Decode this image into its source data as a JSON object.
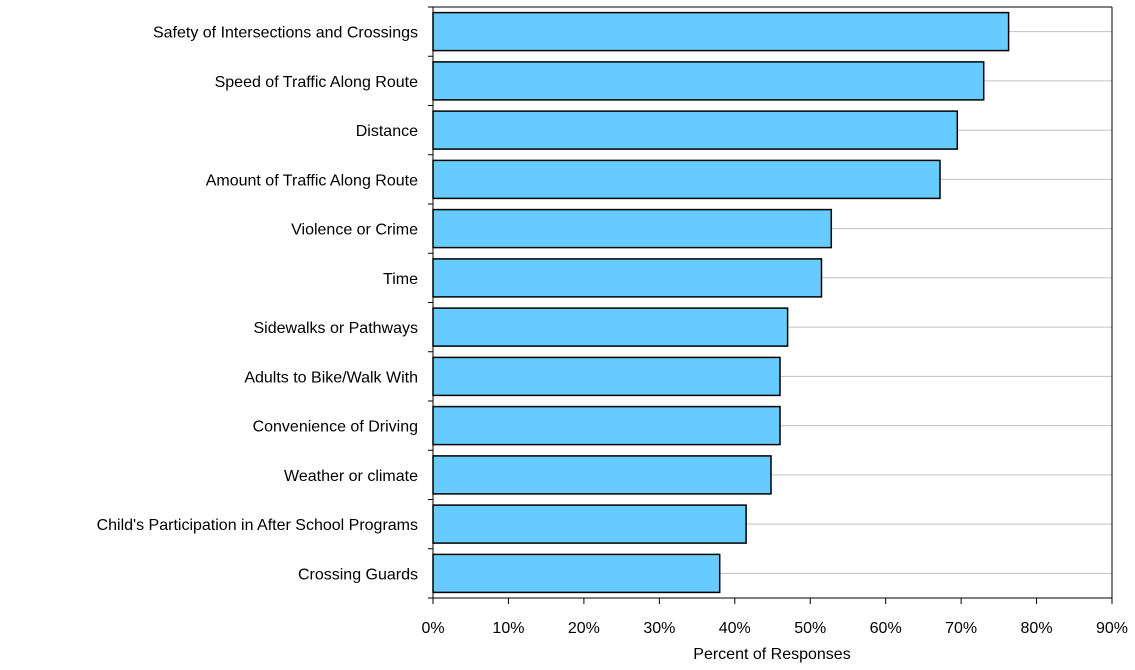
{
  "chart_data": {
    "type": "bar",
    "orientation": "horizontal",
    "categories": [
      "Safety of Intersections and Crossings",
      "Speed of Traffic Along Route",
      "Distance",
      "Amount of Traffic Along Route",
      "Violence or Crime",
      "Time",
      "Sidewalks or Pathways",
      "Adults to Bike/Walk With",
      "Convenience of Driving",
      "Weather or climate",
      "Child's Participation in After School Programs",
      "Crossing Guards"
    ],
    "values": [
      76.3,
      73.0,
      69.5,
      67.2,
      52.8,
      51.5,
      47.0,
      46.0,
      46.0,
      44.8,
      41.5,
      38.0
    ],
    "xlabel": "Percent of Responses",
    "ylabel": "",
    "xlim": [
      0,
      90
    ],
    "x_ticks": [
      0,
      10,
      20,
      30,
      40,
      50,
      60,
      70,
      80,
      90
    ],
    "x_tick_labels": [
      "0%",
      "10%",
      "20%",
      "30%",
      "40%",
      "50%",
      "60%",
      "70%",
      "80%",
      "90%"
    ],
    "grid": "horizontal lines at each category",
    "legend": "none",
    "colors": {
      "bar_fill": "#66CCFF",
      "bar_stroke": "#000000",
      "grid": "#C0C0C0",
      "axis": "#000000",
      "text": "#000000"
    }
  }
}
